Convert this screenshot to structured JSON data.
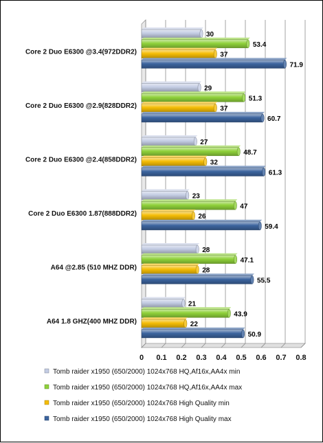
{
  "chart_data": {
    "type": "bar",
    "orientation": "horizontal",
    "categories": [
      "Core 2 Duo E6300 @3.4(972DDR2)",
      "Core 2 Duo E6300 @2.9(828DDR2)",
      "Core 2 Duo E6300 @2.4(858DDR2)",
      "Core 2 Duo E6300 1.87(888DDR2)",
      "A64 @2.85 (510 MHZ DDR)",
      "A64 1.8 GHZ(400 MHZ DDR)"
    ],
    "series": [
      {
        "name": "Tomb raider x1950 (650/2000) 1024x768  HQ,Af16x,AA4x min",
        "color": "#c3cce3",
        "values": [
          0.3,
          0.29,
          0.27,
          0.23,
          0.28,
          0.21
        ],
        "labels": [
          "30",
          "29",
          "27",
          "23",
          "28",
          "21"
        ]
      },
      {
        "name": "Tomb raider x1950 (650/2000) 1024x768  HQ,Af16x,AA4x max",
        "color": "#8fd13a",
        "values": [
          0.534,
          0.513,
          0.487,
          0.47,
          0.471,
          0.439
        ],
        "labels": [
          "53.4",
          "51.3",
          "48.7",
          "47",
          "47.1",
          "43.9"
        ]
      },
      {
        "name": "Tomb raider x1950 (650/2000) 1024x768  High Quality min",
        "color": "#f5bd06",
        "values": [
          0.37,
          0.37,
          0.32,
          0.26,
          0.28,
          0.22
        ],
        "labels": [
          "37",
          "37",
          "32",
          "26",
          "28",
          "22"
        ]
      },
      {
        "name": "Tomb raider x1950 (650/2000) 1024x768  High Quality max",
        "color": "#3c649e",
        "values": [
          0.719,
          0.607,
          0.613,
          0.594,
          0.555,
          0.509
        ],
        "labels": [
          "71.9",
          "60.7",
          "61.3",
          "59.4",
          "55.5",
          "50.9"
        ]
      }
    ],
    "xlim": [
      0,
      0.8
    ],
    "xticks": [
      "0",
      "0.1",
      "0.2",
      "0.3",
      "0.4",
      "0.5",
      "0.6",
      "0.7",
      "0.8"
    ],
    "title": "",
    "xlabel": "",
    "ylabel": "",
    "grid": "vertical",
    "legend_position": "bottom"
  }
}
